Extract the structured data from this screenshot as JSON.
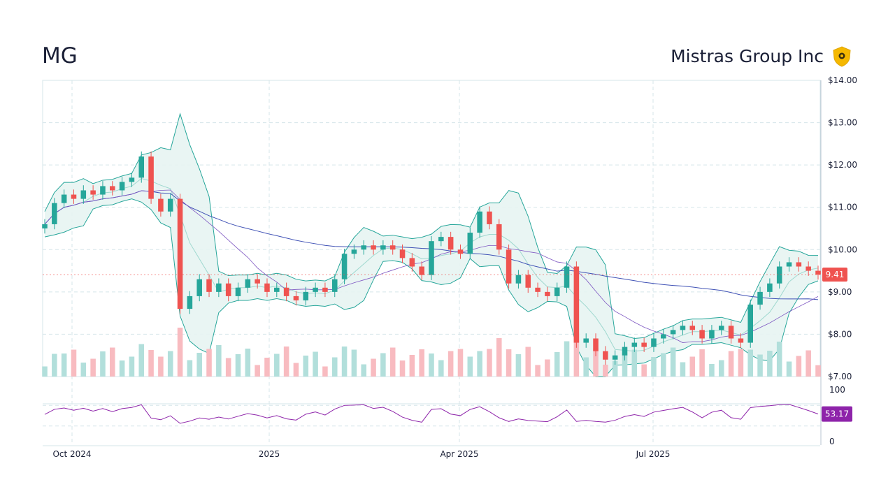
{
  "header": {
    "ticker": "MG",
    "company": "Mistras Group Inc"
  },
  "colors": {
    "up": "#26a69a",
    "down": "#ef5350",
    "band_fill": "#e7f4f2",
    "band_line": "#26a69a",
    "sma_long": "#3f51b5",
    "sma_mid": "#7e57c2",
    "rsi": "#8e24aa",
    "price_badge": "#ef5350",
    "rsi_badge": "#8e24aa",
    "grid": "#d5e5ea"
  },
  "chart_data": {
    "type": "candlestick",
    "price_axis": {
      "ticks": [
        "$14.00",
        "$13.00",
        "$12.00",
        "$11.00",
        "$10.00",
        "$9.00",
        "$8.00",
        "$7.00"
      ],
      "range": [
        7.0,
        14.0
      ]
    },
    "x_axis": {
      "ticks": [
        "Oct 2024",
        "2025",
        "Apr 2025",
        "Jul 2025"
      ]
    },
    "last_price": "9.41",
    "price_series": {
      "description": "Approximate daily close sampled from chart",
      "close": [
        10.6,
        11.1,
        11.3,
        11.2,
        11.4,
        11.3,
        11.5,
        11.4,
        11.6,
        11.7,
        12.2,
        11.2,
        10.9,
        11.2,
        8.6,
        8.9,
        9.3,
        9.0,
        9.2,
        8.9,
        9.1,
        9.3,
        9.2,
        9.0,
        9.1,
        8.9,
        8.8,
        9.0,
        9.1,
        9.0,
        9.3,
        9.9,
        10.0,
        10.1,
        10.0,
        10.1,
        10.0,
        9.8,
        9.6,
        9.4,
        10.2,
        10.3,
        10.0,
        9.9,
        10.4,
        10.9,
        10.6,
        10.0,
        9.2,
        9.4,
        9.1,
        9.0,
        8.9,
        9.1,
        9.6,
        7.8,
        7.9,
        7.6,
        7.4,
        7.5,
        7.7,
        7.8,
        7.7,
        7.9,
        8.0,
        8.1,
        8.2,
        8.1,
        7.9,
        8.1,
        8.2,
        7.9,
        7.8,
        8.7,
        9.0,
        9.2,
        9.6,
        9.7,
        9.6,
        9.5,
        9.41
      ]
    },
    "rsi": {
      "axis_ticks": [
        "100",
        "0"
      ],
      "range": [
        0,
        100
      ],
      "last_value": "53.17",
      "guides": [
        70,
        30
      ]
    }
  }
}
